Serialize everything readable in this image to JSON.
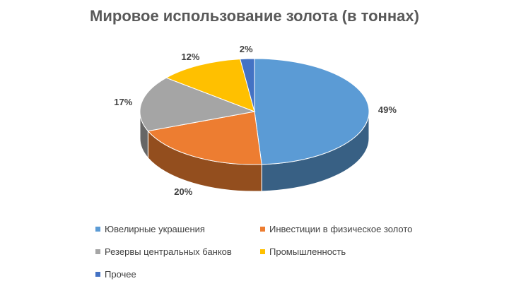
{
  "chart_data": {
    "type": "pie",
    "title": "Мировое использование золота (в тоннах)",
    "slices": [
      {
        "name": "Ювелирные  украшения",
        "value": 49,
        "label": "49%",
        "color": "#5B9BD5"
      },
      {
        "name": "Инвестиции в физическое золото",
        "value": 20,
        "label": "20%",
        "color": "#ED7D31"
      },
      {
        "name": "Резервы  центральных  банков",
        "value": 17,
        "label": "17%",
        "color": "#A5A5A5"
      },
      {
        "name": "Промышленность",
        "value": 12,
        "label": "12%",
        "color": "#FFC000"
      },
      {
        "name": "Прочее",
        "value": 2,
        "label": "2%",
        "color": "#4472C4"
      }
    ],
    "style": "3d",
    "legend_position": "bottom"
  }
}
